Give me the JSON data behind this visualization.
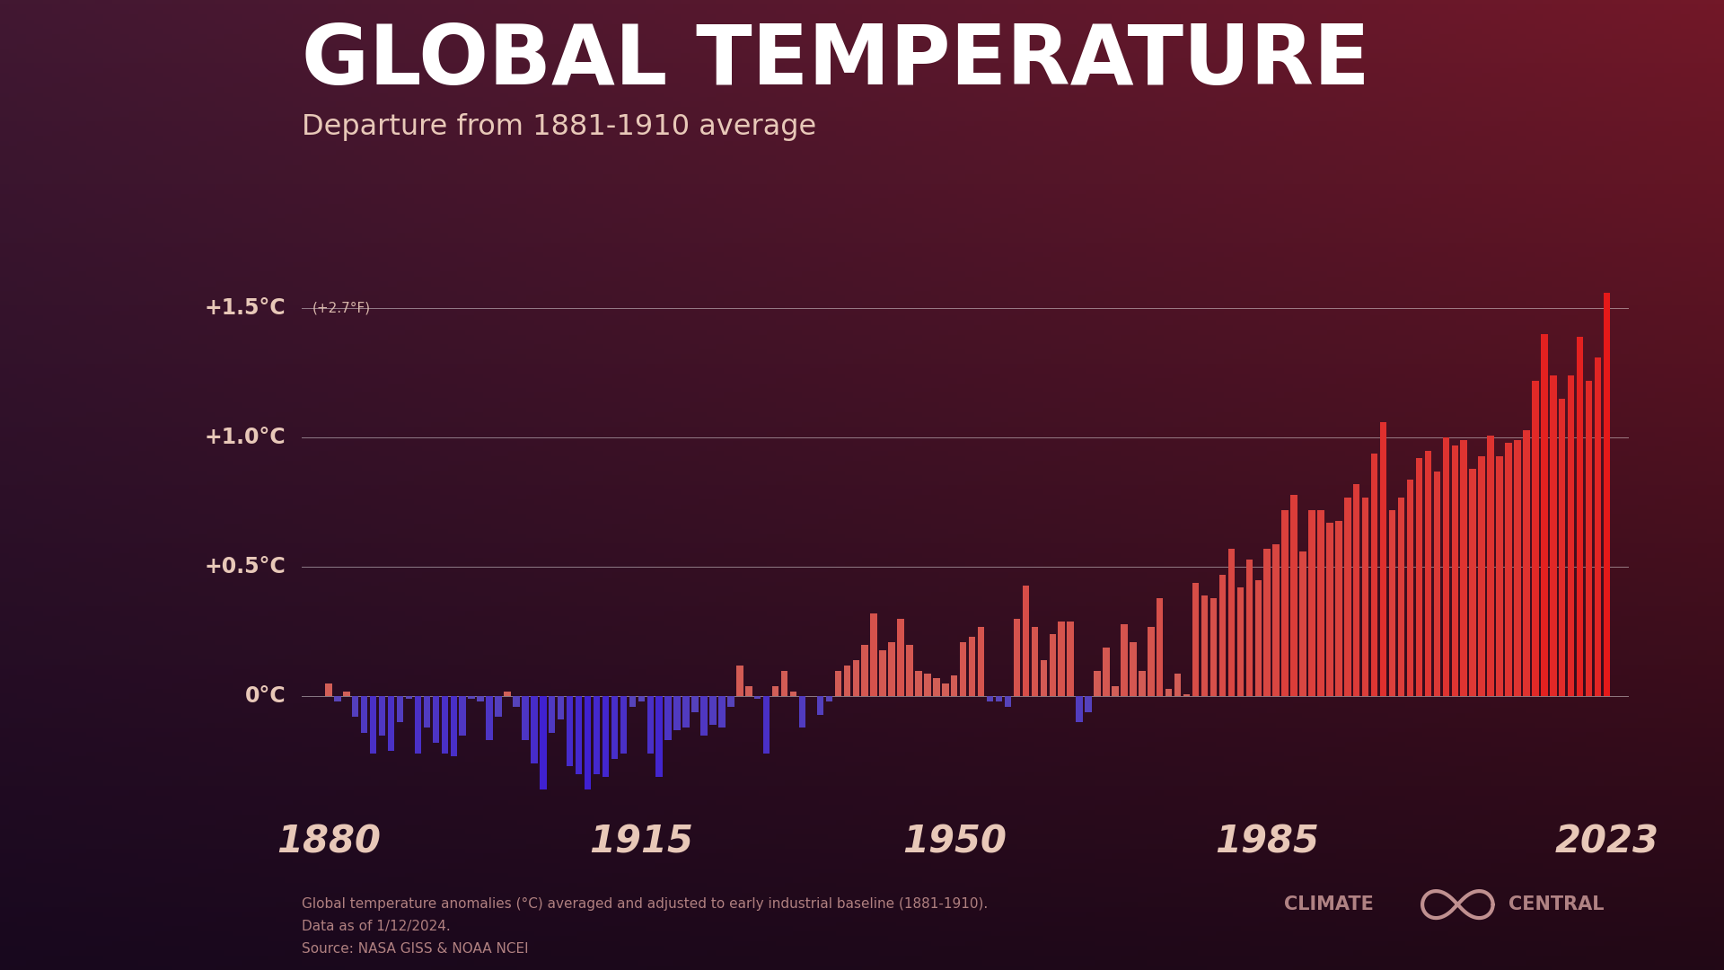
{
  "title": "GLOBAL TEMPERATURE",
  "subtitle": "Departure from 1881-1910 average",
  "footnote_lines": [
    "Global temperature anomalies (°C) averaged and adjusted to early industrial baseline (1881-1910).",
    "Data as of 1/12/2024.",
    "Source: NASA GISS & NOAA NCEI"
  ],
  "title_color": "#ffffff",
  "subtitle_color": "#e8c8b8",
  "axis_label_color": "#e8c8b8",
  "footnote_color": "#b08080",
  "ytick_labels": [
    "+1.5°C",
    "+1.0°C",
    "+0.5°C",
    "0°C"
  ],
  "ytick_values": [
    1.5,
    1.0,
    0.5,
    0.0
  ],
  "xtick_labels": [
    "1880",
    "1915",
    "1950",
    "1985",
    "2023"
  ],
  "xtick_values": [
    1880,
    1915,
    1950,
    1985,
    2023
  ],
  "ylim_min": -0.42,
  "ylim_max": 1.68,
  "years": [
    1880,
    1881,
    1882,
    1883,
    1884,
    1885,
    1886,
    1887,
    1888,
    1889,
    1890,
    1891,
    1892,
    1893,
    1894,
    1895,
    1896,
    1897,
    1898,
    1899,
    1900,
    1901,
    1902,
    1903,
    1904,
    1905,
    1906,
    1907,
    1908,
    1909,
    1910,
    1911,
    1912,
    1913,
    1914,
    1915,
    1916,
    1917,
    1918,
    1919,
    1920,
    1921,
    1922,
    1923,
    1924,
    1925,
    1926,
    1927,
    1928,
    1929,
    1930,
    1931,
    1932,
    1933,
    1934,
    1935,
    1936,
    1937,
    1938,
    1939,
    1940,
    1941,
    1942,
    1943,
    1944,
    1945,
    1946,
    1947,
    1948,
    1949,
    1950,
    1951,
    1952,
    1953,
    1954,
    1955,
    1956,
    1957,
    1958,
    1959,
    1960,
    1961,
    1962,
    1963,
    1964,
    1965,
    1966,
    1967,
    1968,
    1969,
    1970,
    1971,
    1972,
    1973,
    1974,
    1975,
    1976,
    1977,
    1978,
    1979,
    1980,
    1981,
    1982,
    1983,
    1984,
    1985,
    1986,
    1987,
    1988,
    1989,
    1990,
    1991,
    1992,
    1993,
    1994,
    1995,
    1996,
    1997,
    1998,
    1999,
    2000,
    2001,
    2002,
    2003,
    2004,
    2005,
    2006,
    2007,
    2008,
    2009,
    2010,
    2011,
    2012,
    2013,
    2014,
    2015,
    2016,
    2017,
    2018,
    2019,
    2020,
    2021,
    2022,
    2023
  ],
  "anomalies": [
    0.05,
    -0.02,
    0.02,
    -0.08,
    -0.14,
    -0.22,
    -0.15,
    -0.21,
    -0.1,
    -0.01,
    -0.22,
    -0.12,
    -0.18,
    -0.22,
    -0.23,
    -0.15,
    -0.01,
    -0.02,
    -0.17,
    -0.08,
    0.02,
    -0.04,
    -0.17,
    -0.26,
    -0.36,
    -0.14,
    -0.09,
    -0.27,
    -0.3,
    -0.36,
    -0.3,
    -0.31,
    -0.24,
    -0.22,
    -0.04,
    -0.02,
    -0.22,
    -0.31,
    -0.17,
    -0.13,
    -0.12,
    -0.06,
    -0.15,
    -0.11,
    -0.12,
    -0.04,
    0.12,
    0.04,
    -0.01,
    -0.22,
    0.04,
    0.1,
    0.02,
    -0.12,
    0.0,
    -0.07,
    -0.02,
    0.1,
    0.12,
    0.14,
    0.2,
    0.32,
    0.18,
    0.21,
    0.3,
    0.2,
    0.1,
    0.09,
    0.07,
    0.05,
    0.08,
    0.21,
    0.23,
    0.27,
    -0.02,
    -0.02,
    -0.04,
    0.3,
    0.43,
    0.27,
    0.14,
    0.24,
    0.29,
    0.29,
    -0.1,
    -0.06,
    0.1,
    0.19,
    0.04,
    0.28,
    0.21,
    0.1,
    0.27,
    0.38,
    0.03,
    0.09,
    0.01,
    0.44,
    0.39,
    0.38,
    0.47,
    0.57,
    0.42,
    0.53,
    0.45,
    0.57,
    0.59,
    0.72,
    0.78,
    0.56,
    0.72,
    0.72,
    0.67,
    0.68,
    0.77,
    0.82,
    0.77,
    0.94,
    1.06,
    0.72,
    0.77,
    0.84,
    0.92,
    0.95,
    0.87,
    1.0,
    0.97,
    0.99,
    0.88,
    0.93,
    1.01,
    0.93,
    0.98,
    0.99,
    1.03,
    1.22,
    1.4,
    1.24,
    1.15,
    1.24,
    1.39,
    1.22,
    1.31,
    1.56
  ]
}
